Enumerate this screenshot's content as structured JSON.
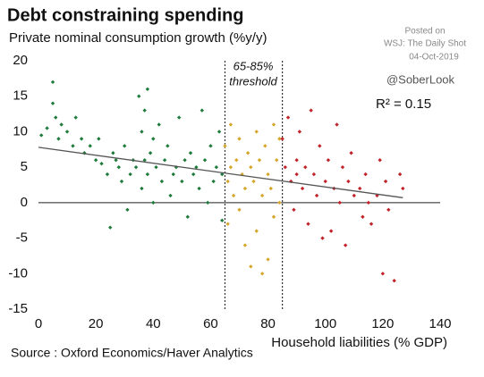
{
  "chart_data": {
    "type": "scatter",
    "title": "Debt constraining spending",
    "subtitle": "Private nominal consumption growth (%y/y)",
    "x_label": "Household liabilities (% GDP)",
    "source": "Source : Oxford Economics/Haver Analytics",
    "watermark": [
      "Posted on",
      "WSJ: The Daily Shot",
      "04-Oct-2019"
    ],
    "handle": "@SoberLook",
    "r_squared_label": "R² = 0.15",
    "threshold_label": [
      "65-85%",
      "threshold"
    ],
    "threshold_lines": [
      65,
      85
    ],
    "trendline": {
      "color": "#555555",
      "x": [
        0,
        127
      ],
      "y": [
        7.8,
        0.7
      ]
    },
    "xlim": [
      0,
      140
    ],
    "xticks": [
      0,
      20,
      40,
      60,
      80,
      100,
      120,
      140
    ],
    "ylim": [
      -15,
      20
    ],
    "yticks": [
      -15,
      -10,
      -5,
      0,
      5,
      10,
      15,
      20
    ],
    "zero_line": true,
    "series": [
      {
        "color": "#1e7b3c",
        "x": [
          1,
          3,
          5,
          5,
          6,
          7,
          8,
          10,
          12,
          13,
          15,
          16,
          18,
          20,
          21,
          22,
          24,
          25,
          26,
          27,
          28,
          29,
          30,
          31,
          32,
          33,
          34,
          35,
          36,
          36,
          37,
          37,
          38,
          38,
          39,
          40,
          40,
          41,
          42,
          43,
          44,
          45,
          46,
          47,
          48,
          49,
          50,
          51,
          52,
          53,
          54,
          55,
          56,
          57,
          58,
          59,
          60,
          61,
          62,
          63,
          64,
          64
        ],
        "y": [
          9.5,
          10.5,
          17,
          14,
          12,
          9,
          11,
          10,
          8,
          12,
          9,
          7,
          8,
          6,
          9,
          5.5,
          4,
          -3.5,
          7,
          6,
          5,
          3,
          8,
          -1,
          4,
          6,
          5,
          15,
          2,
          10,
          6,
          13,
          4,
          16,
          7,
          0,
          9,
          5,
          11,
          3,
          6,
          8,
          1,
          4,
          5,
          12,
          3,
          6,
          -2,
          7,
          4,
          5,
          2,
          13,
          6,
          0,
          8,
          3,
          5,
          10,
          -2.5,
          4
        ]
      },
      {
        "color": "#d4a62a",
        "x": [
          65,
          66,
          66,
          67,
          67,
          68,
          69,
          70,
          70,
          71,
          72,
          72,
          73,
          74,
          74,
          75,
          76,
          76,
          77,
          78,
          78,
          79,
          80,
          80,
          81,
          82,
          82,
          83,
          84,
          84
        ],
        "y": [
          8,
          3,
          -3,
          5,
          11,
          1,
          6,
          -1,
          9,
          4,
          -6,
          2,
          7,
          -9,
          5,
          3,
          10,
          -4,
          6,
          -10,
          1,
          8,
          -8,
          4,
          2,
          11,
          -2,
          6,
          0,
          9
        ]
      },
      {
        "color": "#c0232a",
        "x": [
          85,
          86,
          87,
          88,
          89,
          90,
          90,
          91,
          92,
          93,
          94,
          95,
          96,
          97,
          98,
          99,
          100,
          101,
          102,
          103,
          104,
          105,
          106,
          107,
          108,
          109,
          110,
          112,
          113,
          114,
          115,
          116,
          118,
          119,
          120,
          121,
          122,
          124,
          126,
          127
        ],
        "y": [
          9,
          5,
          12,
          3,
          -1,
          6,
          4,
          10,
          2,
          5,
          -3,
          13,
          4,
          1,
          8,
          -5,
          3,
          6,
          -4,
          2,
          11,
          0,
          5,
          -6,
          3,
          7,
          1,
          2,
          -2,
          4,
          0,
          -3,
          1,
          6,
          -10,
          3,
          -1,
          -11,
          4,
          2
        ]
      }
    ]
  }
}
